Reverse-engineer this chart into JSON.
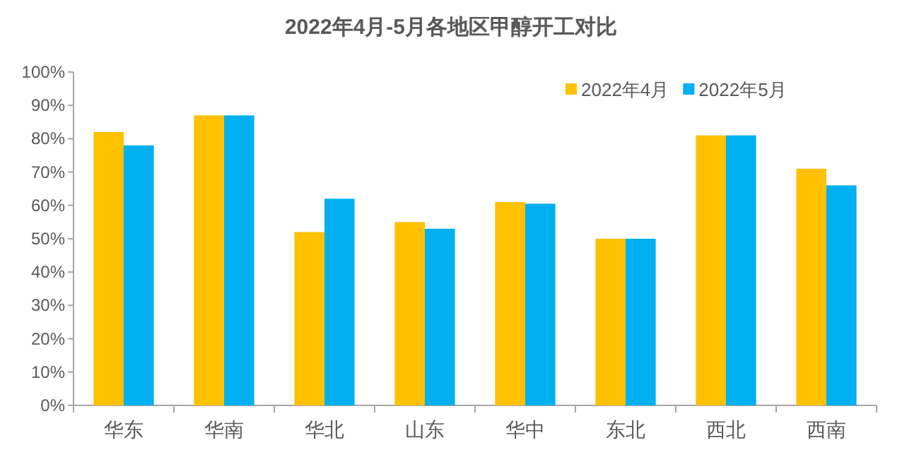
{
  "chart_data": {
    "type": "bar",
    "title": "2022年4月-5月各地区甲醇开工对比",
    "categories": [
      "华东",
      "华南",
      "华北",
      "山东",
      "华中",
      "东北",
      "西北",
      "西南"
    ],
    "series": [
      {
        "name": "2022年4月",
        "color": "#ffc000",
        "values": [
          82,
          87,
          52,
          55,
          61,
          50,
          81,
          71
        ]
      },
      {
        "name": "2022年5月",
        "color": "#00b0f0",
        "values": [
          78,
          87,
          62,
          53,
          60.5,
          50,
          81,
          66
        ]
      }
    ],
    "ylim": [
      0,
      100
    ],
    "yticks": [
      {
        "value": 0,
        "label": "0%"
      },
      {
        "value": 10,
        "label": "10%"
      },
      {
        "value": 20,
        "label": "20%"
      },
      {
        "value": 30,
        "label": "30%"
      },
      {
        "value": 40,
        "label": "40%"
      },
      {
        "value": 50,
        "label": "50%"
      },
      {
        "value": 60,
        "label": "60%"
      },
      {
        "value": 70,
        "label": "70%"
      },
      {
        "value": 80,
        "label": "80%"
      },
      {
        "value": 90,
        "label": "90%"
      },
      {
        "value": 100,
        "label": "100%"
      }
    ],
    "legend": "top right",
    "grid": false
  }
}
